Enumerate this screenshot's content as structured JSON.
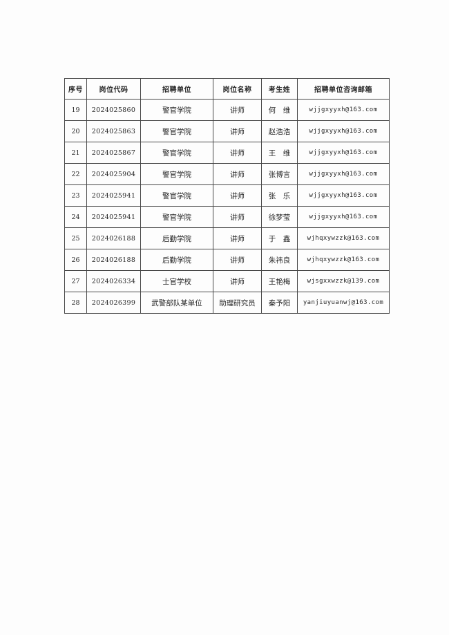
{
  "page": {
    "background_color": "#fdfdfd",
    "border_color": "#454545",
    "text_color": "#262626"
  },
  "table": {
    "columns": [
      {
        "label": "序号"
      },
      {
        "label": "岗位代码"
      },
      {
        "label": "招聘单位"
      },
      {
        "label": "岗位名称"
      },
      {
        "label": "考生姓"
      },
      {
        "label": "招聘单位咨询邮箱"
      }
    ],
    "rows": [
      {
        "seq": "19",
        "code": "2024025860",
        "unit": "警官学院",
        "post": "讲师",
        "name": "何　维",
        "email": "wjjgxyyxh@163.com"
      },
      {
        "seq": "20",
        "code": "2024025863",
        "unit": "警官学院",
        "post": "讲师",
        "name": "赵浩浩",
        "email": "wjjgxyyxh@163.com"
      },
      {
        "seq": "21",
        "code": "2024025867",
        "unit": "警官学院",
        "post": "讲师",
        "name": "王　维",
        "email": "wjjgxyyxh@163.com"
      },
      {
        "seq": "22",
        "code": "2024025904",
        "unit": "警官学院",
        "post": "讲师",
        "name": "张博言",
        "email": "wjjgxyyxh@163.com"
      },
      {
        "seq": "23",
        "code": "2024025941",
        "unit": "警官学院",
        "post": "讲师",
        "name": "张　乐",
        "email": "wjjgxyyxh@163.com"
      },
      {
        "seq": "24",
        "code": "2024025941",
        "unit": "警官学院",
        "post": "讲师",
        "name": "徐梦莹",
        "email": "wjjgxyyxh@163.com"
      },
      {
        "seq": "25",
        "code": "2024026188",
        "unit": "后勤学院",
        "post": "讲师",
        "name": "于　鑫",
        "email": "wjhqxywzzk@163.com"
      },
      {
        "seq": "26",
        "code": "2024026188",
        "unit": "后勤学院",
        "post": "讲师",
        "name": "朱祎良",
        "email": "wjhqxywzzk@163.com"
      },
      {
        "seq": "27",
        "code": "2024026334",
        "unit": "士官学校",
        "post": "讲师",
        "name": "王艳梅",
        "email": "wjsgxxwzzk@139.com"
      },
      {
        "seq": "28",
        "code": "2024026399",
        "unit": "武警部队某单位",
        "post": "助理研究员",
        "name": "秦予阳",
        "email": "yanjiuyuanwj@163.com"
      }
    ]
  }
}
